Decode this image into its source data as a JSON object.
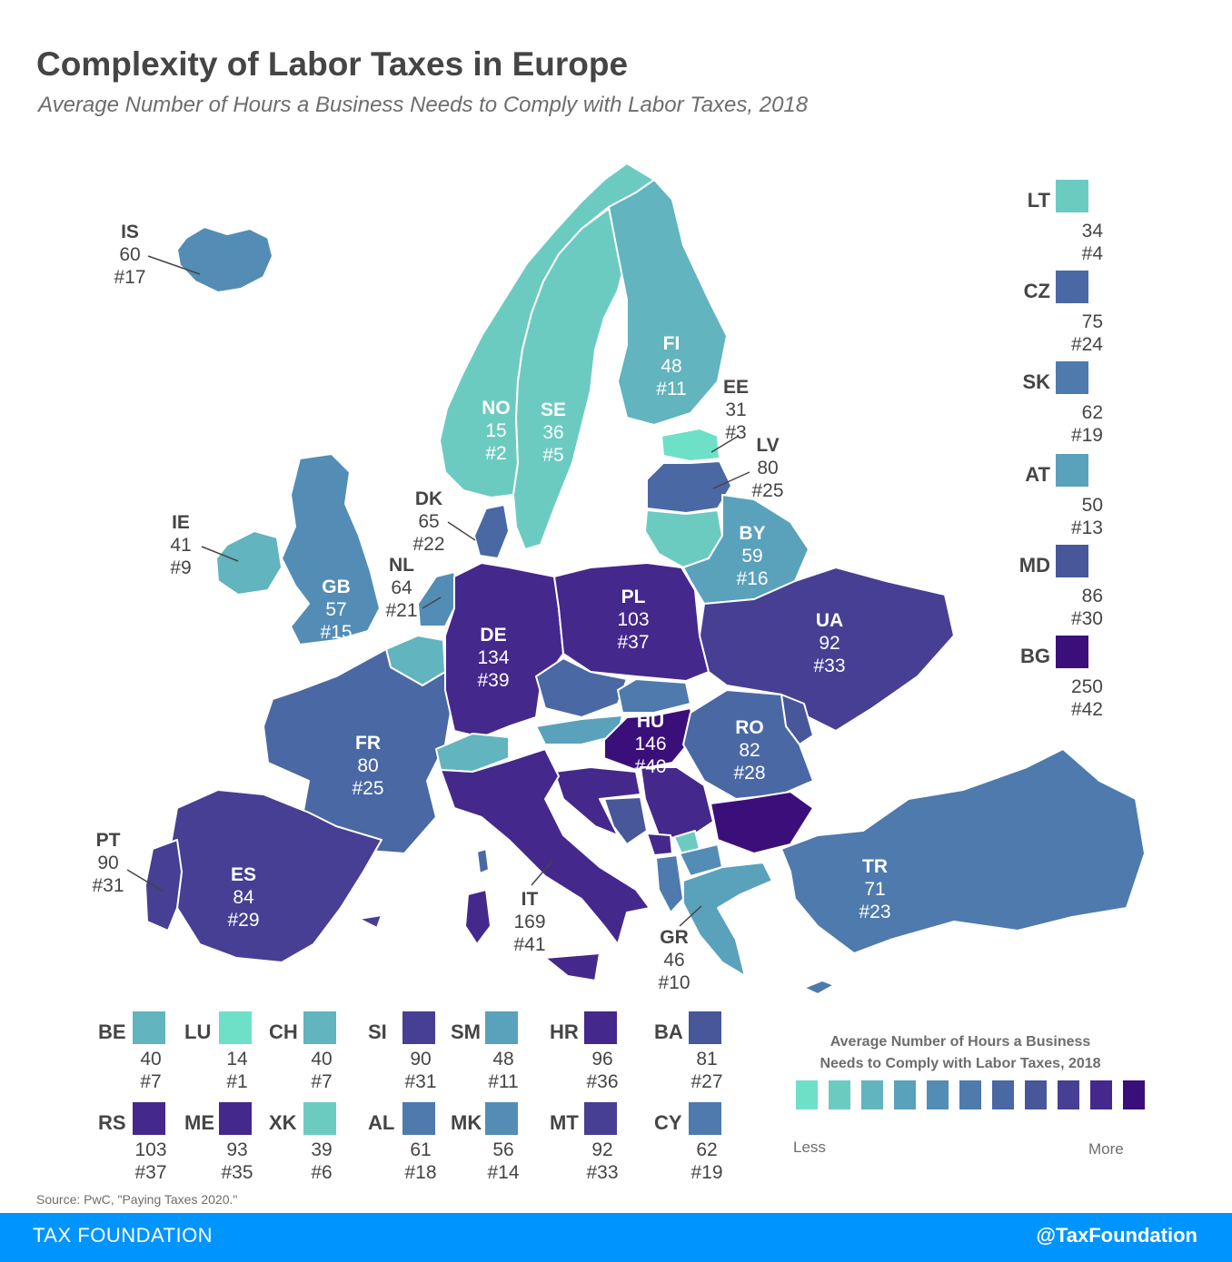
{
  "header": {
    "title": "Complexity of Labor Taxes in Europe",
    "subtitle": "Average Number of Hours a Business Needs to Comply with Labor Taxes, 2018"
  },
  "colors": {
    "scale": [
      "#6fe0c8",
      "#6ccbc1",
      "#62b4be",
      "#5aa1bc",
      "#538db6",
      "#4e7aad",
      "#4a68a4",
      "#48579a",
      "#463f93",
      "#45288c",
      "#3b0f7a"
    ],
    "bg_water": "#ffffff",
    "border": "#ffffff",
    "non_data": "#d9d9d9"
  },
  "countries": [
    {
      "code": "IS",
      "hours": "60",
      "rank": "#17"
    },
    {
      "code": "NO",
      "hours": "15",
      "rank": "#2"
    },
    {
      "code": "SE",
      "hours": "36",
      "rank": "#5"
    },
    {
      "code": "FI",
      "hours": "48",
      "rank": "#11"
    },
    {
      "code": "EE",
      "hours": "31",
      "rank": "#3"
    },
    {
      "code": "LV",
      "hours": "80",
      "rank": "#25"
    },
    {
      "code": "DK",
      "hours": "65",
      "rank": "#22"
    },
    {
      "code": "IE",
      "hours": "41",
      "rank": "#9"
    },
    {
      "code": "GB",
      "hours": "57",
      "rank": "#15"
    },
    {
      "code": "NL",
      "hours": "64",
      "rank": "#21"
    },
    {
      "code": "BY",
      "hours": "59",
      "rank": "#16"
    },
    {
      "code": "PL",
      "hours": "103",
      "rank": "#37"
    },
    {
      "code": "DE",
      "hours": "134",
      "rank": "#39"
    },
    {
      "code": "UA",
      "hours": "92",
      "rank": "#33"
    },
    {
      "code": "HU",
      "hours": "146",
      "rank": "#40"
    },
    {
      "code": "RO",
      "hours": "82",
      "rank": "#28"
    },
    {
      "code": "FR",
      "hours": "80",
      "rank": "#25"
    },
    {
      "code": "PT",
      "hours": "90",
      "rank": "#31"
    },
    {
      "code": "ES",
      "hours": "84",
      "rank": "#29"
    },
    {
      "code": "IT",
      "hours": "169",
      "rank": "#41"
    },
    {
      "code": "GR",
      "hours": "46",
      "rank": "#10"
    },
    {
      "code": "TR",
      "hours": "71",
      "rank": "#23"
    }
  ],
  "side_legend": [
    {
      "code": "LT",
      "hours": "34",
      "rank": "#4",
      "color": "#6ccbc1"
    },
    {
      "code": "CZ",
      "hours": "75",
      "rank": "#24",
      "color": "#4a68a4"
    },
    {
      "code": "SK",
      "hours": "62",
      "rank": "#19",
      "color": "#4e7aad"
    },
    {
      "code": "AT",
      "hours": "50",
      "rank": "#13",
      "color": "#5aa1bc"
    },
    {
      "code": "MD",
      "hours": "86",
      "rank": "#30",
      "color": "#48579a"
    },
    {
      "code": "BG",
      "hours": "250",
      "rank": "#42",
      "color": "#3b0f7a"
    }
  ],
  "bottom_legend": [
    {
      "code": "BE",
      "hours": "40",
      "rank": "#7",
      "color": "#62b4be"
    },
    {
      "code": "LU",
      "hours": "14",
      "rank": "#1",
      "color": "#6fe0c8"
    },
    {
      "code": "CH",
      "hours": "40",
      "rank": "#7",
      "color": "#62b4be"
    },
    {
      "code": "SI",
      "hours": "90",
      "rank": "#31",
      "color": "#463f93"
    },
    {
      "code": "SM",
      "hours": "48",
      "rank": "#11",
      "color": "#5aa1bc"
    },
    {
      "code": "HR",
      "hours": "96",
      "rank": "#36",
      "color": "#45288c"
    },
    {
      "code": "BA",
      "hours": "81",
      "rank": "#27",
      "color": "#48579a"
    },
    {
      "code": "RS",
      "hours": "103",
      "rank": "#37",
      "color": "#45288c"
    },
    {
      "code": "ME",
      "hours": "93",
      "rank": "#35",
      "color": "#45288c"
    },
    {
      "code": "XK",
      "hours": "39",
      "rank": "#6",
      "color": "#6ccbc1"
    },
    {
      "code": "AL",
      "hours": "61",
      "rank": "#18",
      "color": "#4e7aad"
    },
    {
      "code": "MK",
      "hours": "56",
      "rank": "#14",
      "color": "#538db6"
    },
    {
      "code": "MT",
      "hours": "92",
      "rank": "#33",
      "color": "#463f93"
    },
    {
      "code": "CY",
      "hours": "62",
      "rank": "#19",
      "color": "#4e7aad"
    }
  ],
  "legend": {
    "title_line1": "Average Number of Hours a Business",
    "title_line2": "Needs to Comply with Labor Taxes, 2018",
    "less": "Less",
    "more": "More"
  },
  "source": "Source: PwC, \"Paying Taxes 2020.\"",
  "footer": {
    "left": "TAX FOUNDATION",
    "right": "@TaxFoundation"
  }
}
